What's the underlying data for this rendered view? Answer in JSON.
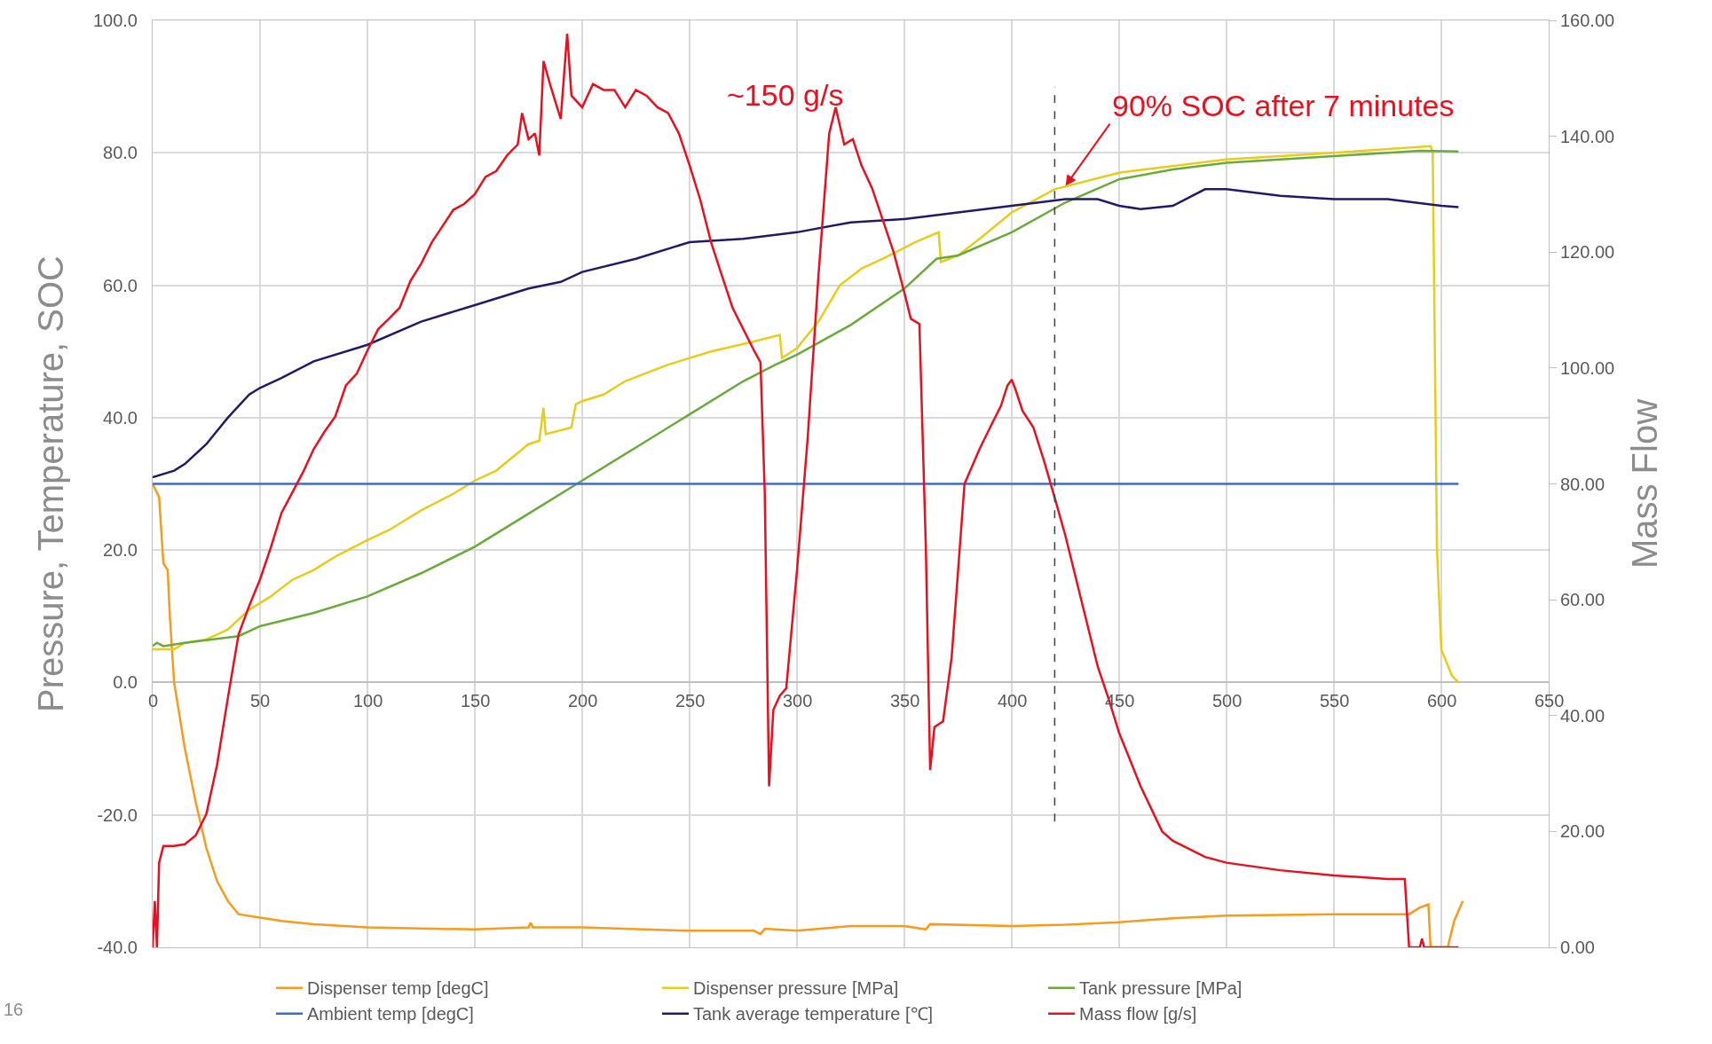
{
  "chart_data": {
    "type": "line",
    "ylabel": "Pressure, Temperature, SOC",
    "y2label": "Mass Flow",
    "xlim": [
      0,
      650
    ],
    "xticks": [
      0,
      50,
      100,
      150,
      200,
      250,
      300,
      350,
      400,
      450,
      500,
      550,
      600,
      650
    ],
    "ylim": [
      -40,
      100
    ],
    "yticks": [
      {
        "value": -40,
        "label": "-40.0"
      },
      {
        "value": -20,
        "label": "-20.0"
      },
      {
        "value": 0,
        "label": "0.0"
      },
      {
        "value": 20,
        "label": "20.0"
      },
      {
        "value": 40,
        "label": "40.0"
      },
      {
        "value": 60,
        "label": "60.0"
      },
      {
        "value": 80,
        "label": "80.0"
      },
      {
        "value": 100,
        "label": "100.0"
      }
    ],
    "y2lim": [
      0,
      160
    ],
    "y2ticks": [
      {
        "value": 0,
        "label": "0.00"
      },
      {
        "value": 20,
        "label": "20.00"
      },
      {
        "value": 40,
        "label": "40.00"
      },
      {
        "value": 60,
        "label": "60.00"
      },
      {
        "value": 80,
        "label": "80.00"
      },
      {
        "value": 100,
        "label": "100.00"
      },
      {
        "value": 120,
        "label": "120.00"
      },
      {
        "value": 140,
        "label": "140.00"
      },
      {
        "value": 160,
        "label": "160.00"
      }
    ],
    "grid": true,
    "legend": "bottom",
    "marker": "none",
    "line_style": "solid",
    "ref_lines": [
      {
        "axis": "x",
        "value": 420,
        "label": null,
        "color": "#404040",
        "line_style": "dashed"
      }
    ],
    "annotations": [
      "~150 g/s",
      {
        "text": "90% SOC after 7 minutes",
        "x": 425,
        "y": 75
      },
      "16"
    ],
    "series": [
      {
        "name": "Dispenser temp [degC]",
        "color": "#f79b1c",
        "x": [
          0,
          3,
          5,
          7,
          8,
          10,
          15,
          20,
          25,
          30,
          35,
          40,
          50,
          60,
          75,
          100,
          150,
          175,
          176,
          177,
          200,
          250,
          280,
          283,
          285,
          300,
          325,
          350,
          360,
          362,
          400,
          425,
          450,
          475,
          500,
          550,
          585,
          590,
          594,
          595,
          603,
          606,
          610
        ],
        "values": [
          30,
          28,
          18,
          17,
          10,
          0,
          -10,
          -18,
          -25,
          -30,
          -33,
          -35,
          -35.5,
          -36,
          -36.5,
          -37,
          -37.3,
          -37,
          -36.3,
          -37,
          -37,
          -37.5,
          -37.5,
          -38,
          -37.2,
          -37.5,
          -36.8,
          -36.8,
          -37.3,
          -36.5,
          -36.8,
          -36.6,
          -36.2,
          -35.6,
          -35.2,
          -35,
          -35,
          -34,
          -33.5,
          -40,
          -40,
          -36,
          -33
        ]
      },
      {
        "name": "Dispenser pressure [MPa]",
        "color": "#e8cc1a",
        "x": [
          0,
          10,
          15,
          25,
          35,
          45,
          55,
          65,
          75,
          85,
          100,
          110,
          125,
          140,
          150,
          160,
          175,
          180,
          182,
          183,
          195,
          197,
          200,
          210,
          220,
          240,
          260,
          280,
          292,
          293,
          300,
          310,
          320,
          330,
          340,
          355,
          366,
          367,
          375,
          385,
          400,
          420,
          450,
          500,
          550,
          595,
          596,
          598,
          600,
          605,
          608
        ],
        "values": [
          5,
          5,
          6,
          6.5,
          8,
          11,
          13,
          15.5,
          17,
          19,
          21.5,
          23,
          26,
          28.5,
          30.5,
          32,
          36,
          36.5,
          41.5,
          37.5,
          38.5,
          42,
          42.5,
          43.5,
          45.5,
          48,
          50,
          51.5,
          52.5,
          49,
          50.5,
          54.5,
          60,
          62.5,
          64,
          66.5,
          68,
          63.5,
          64.5,
          67,
          71,
          74.5,
          77,
          79,
          80,
          81,
          80,
          20,
          5,
          1,
          0
        ]
      },
      {
        "name": "Tank pressure [MPa]",
        "color": "#6aaa3a",
        "x": [
          0,
          2,
          5,
          15,
          40,
          50,
          75,
          100,
          125,
          150,
          175,
          200,
          225,
          250,
          275,
          290,
          300,
          325,
          350,
          365,
          375,
          400,
          425,
          450,
          475,
          500,
          550,
          590,
          608
        ],
        "values": [
          5.5,
          6,
          5.5,
          6,
          7,
          8.5,
          10.5,
          13,
          16.5,
          20.5,
          25.5,
          30.5,
          35.5,
          40.5,
          45.5,
          48,
          49.5,
          54,
          59.5,
          64,
          64.5,
          68,
          72.5,
          76,
          77.5,
          78.5,
          79.5,
          80.3,
          80.2
        ]
      },
      {
        "name": "Ambient temp [degC]",
        "color": "#3d6cc4",
        "x": [
          0,
          608
        ],
        "values": [
          30,
          30
        ]
      },
      {
        "name": "Tank average temperature [℃]",
        "color": "#231a66",
        "x": [
          0,
          10,
          15,
          25,
          35,
          45,
          50,
          60,
          75,
          100,
          125,
          150,
          175,
          190,
          200,
          225,
          250,
          275,
          300,
          325,
          350,
          375,
          400,
          425,
          440,
          450,
          460,
          475,
          490,
          500,
          525,
          550,
          575,
          600,
          608
        ],
        "values": [
          31,
          32,
          33,
          36,
          40,
          43.5,
          44.5,
          46,
          48.5,
          51,
          54.5,
          57,
          59.5,
          60.5,
          62,
          64,
          66.5,
          67,
          68,
          69.5,
          70,
          71,
          72,
          73,
          73,
          72,
          71.5,
          72,
          74.5,
          74.5,
          73.5,
          73,
          73,
          72,
          71.8
        ]
      },
      {
        "name": "Mass flow [g/s]",
        "color": "#e8101e",
        "axis": "y2",
        "x": [
          0,
          1,
          2,
          3,
          5,
          10,
          15,
          20,
          25,
          30,
          35,
          40,
          45,
          50,
          55,
          60,
          65,
          70,
          75,
          80,
          85,
          90,
          95,
          100,
          105,
          110,
          115,
          120,
          125,
          130,
          135,
          140,
          145,
          150,
          155,
          160,
          165,
          170,
          172,
          175,
          178,
          180,
          182,
          185,
          190,
          193,
          195,
          200,
          205,
          210,
          215,
          220,
          225,
          230,
          235,
          240,
          245,
          250,
          255,
          260,
          265,
          270,
          275,
          280,
          283,
          285,
          287,
          289,
          292,
          295,
          300,
          305,
          310,
          315,
          318,
          322,
          326,
          330,
          335,
          340,
          345,
          350,
          353,
          357,
          360,
          362,
          364,
          368,
          372,
          375,
          378,
          385,
          390,
          395,
          398,
          400,
          402,
          405,
          410,
          415,
          420,
          425,
          430,
          435,
          440,
          445,
          450,
          460,
          470,
          475,
          490,
          500,
          525,
          550,
          575,
          583,
          585,
          590,
          591,
          592,
          608
        ],
        "values": [
          0,
          8,
          0,
          14.6,
          17.5,
          17.5,
          17.8,
          19.3,
          23,
          31.5,
          43,
          54,
          59,
          63.5,
          69,
          75,
          78.5,
          82,
          86,
          89,
          91.6,
          97,
          99,
          103,
          106.7,
          108.5,
          110.4,
          115,
          118,
          121.7,
          124.5,
          127.3,
          128.3,
          130,
          133,
          134,
          136.7,
          138.6,
          144,
          139.5,
          140.5,
          136.7,
          153,
          149,
          143,
          157.7,
          147,
          145,
          149,
          148,
          148,
          145,
          148,
          147,
          145,
          144,
          140.5,
          135,
          129,
          121.7,
          116,
          110.4,
          106.7,
          103,
          101,
          78.5,
          27.8,
          41,
          43.4,
          44.7,
          65,
          88,
          116,
          140.5,
          145,
          138.6,
          139.5,
          135,
          131,
          125.5,
          120,
          113,
          108.5,
          107.6,
          69,
          30.6,
          38,
          39,
          50,
          65,
          80,
          86,
          89.8,
          93.5,
          97,
          98,
          96,
          92.6,
          89.8,
          84,
          77.6,
          71,
          63.5,
          56,
          48.5,
          43,
          37,
          27.8,
          20,
          18.4,
          15.6,
          14.6,
          13.3,
          12.4,
          11.8,
          11.8,
          0,
          0,
          1.5,
          0,
          0
        ]
      }
    ]
  }
}
